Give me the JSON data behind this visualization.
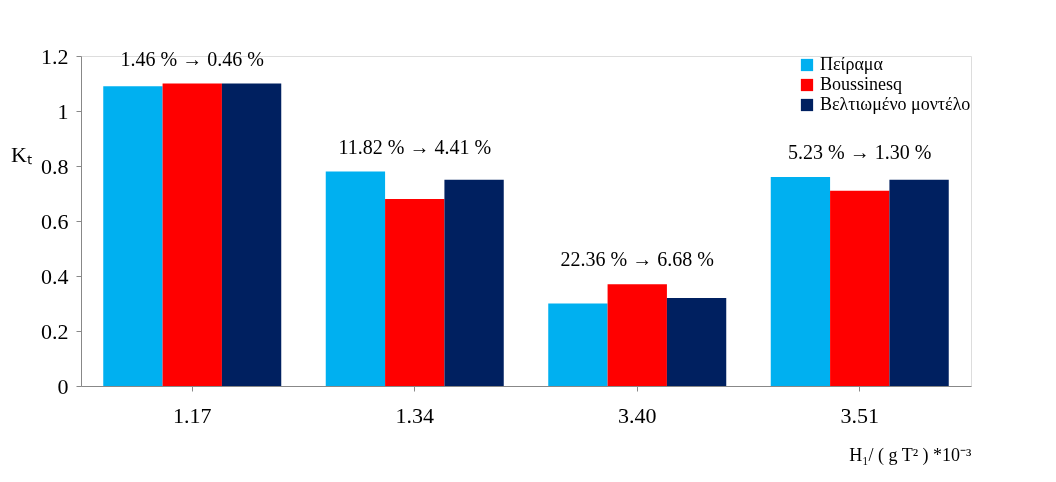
{
  "chart_data": {
    "type": "bar",
    "xlabel": "H₁/ ( g T² ) *10⁻³",
    "ylabel": "Kₜ",
    "categories": [
      "1.17",
      "1.34",
      "3.40",
      "3.51"
    ],
    "series": [
      {
        "name": "Πείραμα",
        "color": "#00b0f0",
        "values": [
          1.09,
          0.78,
          0.3,
          0.76
        ]
      },
      {
        "name": "Boussinesq",
        "color": "#ff0000",
        "values": [
          1.1,
          0.68,
          0.37,
          0.71
        ]
      },
      {
        "name": "Βελτιωμένο μοντέλο",
        "color": "#002060",
        "values": [
          1.1,
          0.75,
          0.32,
          0.75
        ]
      }
    ],
    "ylim": [
      0,
      1.2
    ],
    "yticks": [
      0,
      0.2,
      0.4,
      0.6,
      0.8,
      1,
      1.2
    ],
    "grid": false,
    "legend": "top right",
    "annotations": [
      "1.46 % → 0.46 %",
      "11.82 % → 4.41 %",
      "22.36  % → 6.68 %",
      "5.23  % → 1.30 %"
    ]
  }
}
